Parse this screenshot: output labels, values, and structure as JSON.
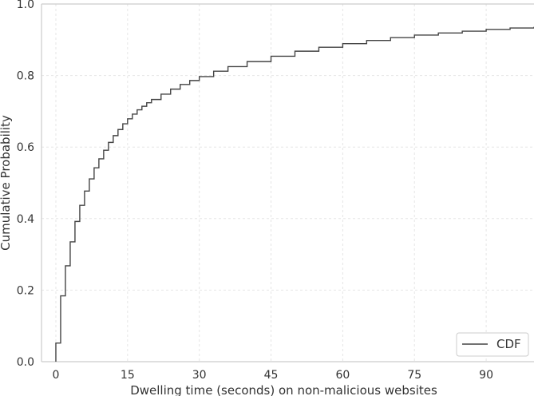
{
  "chart_data": {
    "type": "line",
    "step": true,
    "xlabel": "Dwelling time (seconds) on non-malicious websites",
    "ylabel": "Cumulative Probability",
    "xlim": [
      -3,
      100
    ],
    "ylim": [
      0,
      1
    ],
    "xticks": [
      0,
      15,
      30,
      45,
      60,
      75,
      90
    ],
    "yticks": [
      0.0,
      0.2,
      0.4,
      0.6,
      0.8,
      1.0
    ],
    "grid": true,
    "legend_position": "bottom-right",
    "colors": {
      "line": "#444444",
      "grid": "#e6e6e6",
      "axis": "#cccccc"
    },
    "series": [
      {
        "name": "CDF",
        "x": [
          0,
          1,
          2,
          3,
          4,
          5,
          6,
          7,
          8,
          9,
          10,
          11,
          12,
          13,
          14,
          15,
          16,
          17,
          18,
          19,
          20,
          22,
          24,
          26,
          28,
          30,
          33,
          36,
          40,
          45,
          50,
          55,
          60,
          65,
          70,
          75,
          80,
          85,
          90,
          95,
          100
        ],
        "y": [
          0.052,
          0.184,
          0.268,
          0.335,
          0.392,
          0.437,
          0.477,
          0.511,
          0.542,
          0.567,
          0.591,
          0.613,
          0.632,
          0.649,
          0.665,
          0.679,
          0.692,
          0.704,
          0.714,
          0.724,
          0.733,
          0.748,
          0.762,
          0.775,
          0.786,
          0.797,
          0.812,
          0.825,
          0.839,
          0.854,
          0.868,
          0.879,
          0.889,
          0.898,
          0.906,
          0.913,
          0.919,
          0.924,
          0.929,
          0.933,
          0.936
        ]
      }
    ]
  }
}
